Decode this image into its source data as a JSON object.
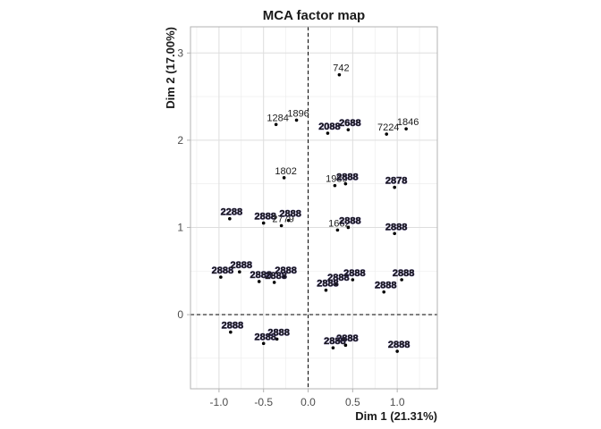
{
  "chart_data": {
    "type": "scatter",
    "title": "MCA factor map",
    "xlabel": "Dim 1 (21.31%)",
    "ylabel": "Dim 2 (17.00%)",
    "xlim": [
      -1.32,
      1.45
    ],
    "ylim": [
      -0.85,
      3.3
    ],
    "xticks": [
      -1.0,
      -0.5,
      0.0,
      0.5,
      1.0
    ],
    "xtick_labels": [
      "-1.0",
      "-0.5",
      "0.0",
      "0.5",
      "1.0"
    ],
    "yticks": [
      0,
      1,
      2,
      3
    ],
    "ytick_labels": [
      "0",
      "1",
      "2",
      "3"
    ],
    "reference_lines": {
      "x": 0,
      "y": 0,
      "style": "dashed"
    },
    "grid": true,
    "point_color": "#000000",
    "overplot_color": "#3b2e7a",
    "labeled_points": [
      {
        "label": "742",
        "x": 0.35,
        "y": 2.75
      },
      {
        "label": "1284",
        "x": -0.36,
        "y": 2.18
      },
      {
        "label": "1896",
        "x": -0.13,
        "y": 2.23
      },
      {
        "label": "2088",
        "x": 0.22,
        "y": 2.08
      },
      {
        "label": "2688",
        "x": 0.45,
        "y": 2.12
      },
      {
        "label": "7224",
        "x": 0.88,
        "y": 2.07
      },
      {
        "label": "1846",
        "x": 1.1,
        "y": 2.13
      },
      {
        "label": "1802",
        "x": -0.27,
        "y": 1.57
      },
      {
        "label": "1989",
        "x": 0.3,
        "y": 1.48
      },
      {
        "label": "2888",
        "x": 0.42,
        "y": 1.5
      },
      {
        "label": "2878",
        "x": 0.97,
        "y": 1.46
      },
      {
        "label": "2288",
        "x": -0.88,
        "y": 1.1
      },
      {
        "label": "2888",
        "x": -0.5,
        "y": 1.05
      },
      {
        "label": "2779",
        "x": -0.3,
        "y": 1.02
      },
      {
        "label": "2888",
        "x": -0.22,
        "y": 1.08
      },
      {
        "label": "1662",
        "x": 0.33,
        "y": 0.97
      },
      {
        "label": "2888",
        "x": 0.45,
        "y": 1.0
      },
      {
        "label": "2888",
        "x": 0.97,
        "y": 0.93
      },
      {
        "label": "2888",
        "x": -0.98,
        "y": 0.43
      },
      {
        "label": "2888",
        "x": -0.77,
        "y": 0.49
      },
      {
        "label": "2888",
        "x": -0.55,
        "y": 0.38
      },
      {
        "label": "2888",
        "x": -0.38,
        "y": 0.37
      },
      {
        "label": "2888",
        "x": -0.27,
        "y": 0.43
      },
      {
        "label": "2888",
        "x": 0.2,
        "y": 0.28
      },
      {
        "label": "2888",
        "x": 0.32,
        "y": 0.35
      },
      {
        "label": "2888",
        "x": 0.5,
        "y": 0.4
      },
      {
        "label": "2888",
        "x": 0.85,
        "y": 0.26
      },
      {
        "label": "2888",
        "x": 1.05,
        "y": 0.4
      },
      {
        "label": "2888",
        "x": -0.87,
        "y": -0.2
      },
      {
        "label": "2888",
        "x": -0.5,
        "y": -0.33
      },
      {
        "label": "2888",
        "x": -0.35,
        "y": -0.28
      },
      {
        "label": "2888",
        "x": 0.28,
        "y": -0.38
      },
      {
        "label": "2888",
        "x": 0.42,
        "y": -0.35
      },
      {
        "label": "2888",
        "x": 1.0,
        "y": -0.42
      }
    ]
  }
}
